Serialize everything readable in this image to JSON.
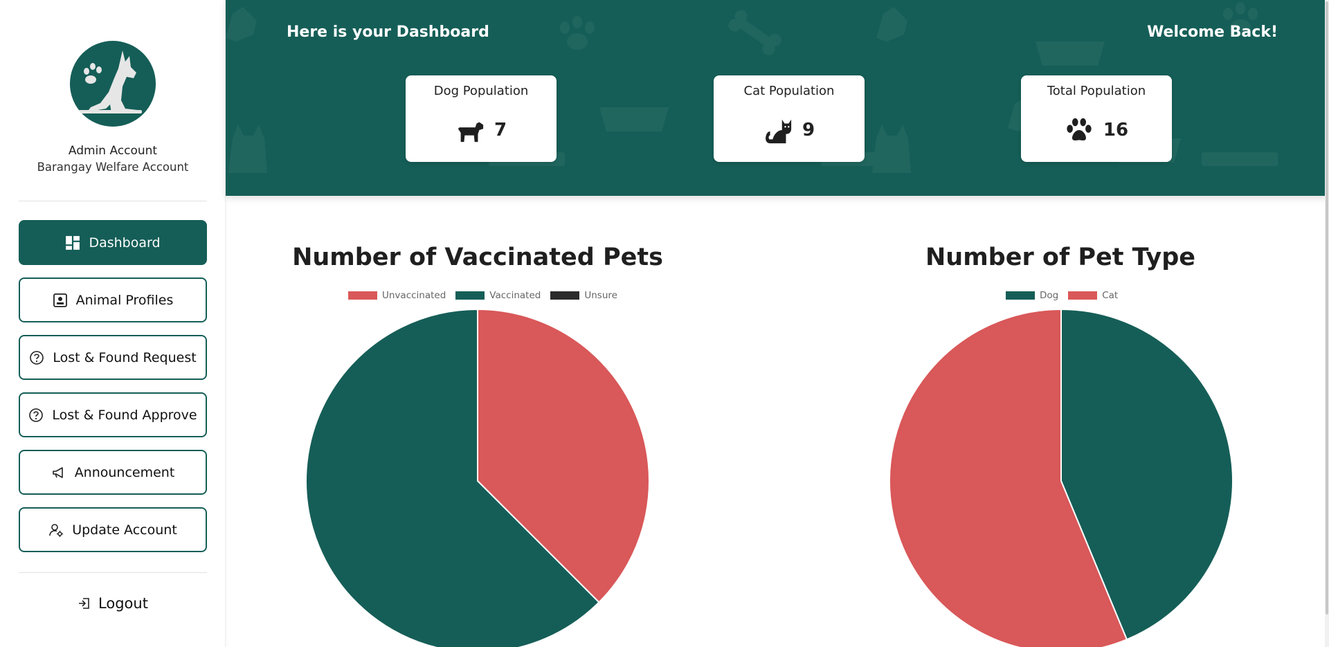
{
  "sidebar": {
    "account_name": "Admin Account",
    "account_sub": "Barangay Welfare Account",
    "nav": [
      {
        "label": "Dashboard",
        "icon": "dashboard-icon"
      },
      {
        "label": "Animal Profiles",
        "icon": "profile-card-icon"
      },
      {
        "label": "Lost & Found Request",
        "icon": "question-circle-icon"
      },
      {
        "label": "Lost & Found Approve",
        "icon": "question-circle-icon"
      },
      {
        "label": "Announcement",
        "icon": "megaphone-icon"
      },
      {
        "label": "Update Account",
        "icon": "user-gear-icon"
      }
    ],
    "logout": "Logout"
  },
  "header": {
    "title": "Here is your Dashboard",
    "welcome": "Welcome Back!"
  },
  "stats": [
    {
      "label": "Dog Population",
      "value": "7",
      "icon": "dog-icon"
    },
    {
      "label": "Cat Population",
      "value": "9",
      "icon": "cat-icon"
    },
    {
      "label": "Total Population",
      "value": "16",
      "icon": "paw-icon"
    }
  ],
  "colors": {
    "primary": "#155e57",
    "red": "#d95859",
    "dark": "#2b2b2b"
  },
  "chart_data": [
    {
      "type": "pie",
      "title": "Number of Vaccinated Pets",
      "categories": [
        "Unvaccinated",
        "Vaccinated",
        "Unsure"
      ],
      "values": [
        6,
        10,
        0
      ],
      "colors": [
        "#d95859",
        "#155e57",
        "#2b2b2b"
      ],
      "legend": "top"
    },
    {
      "type": "pie",
      "title": "Number of Pet Type",
      "categories": [
        "Dog",
        "Cat"
      ],
      "values": [
        7,
        9
      ],
      "colors": [
        "#155e57",
        "#d95859"
      ],
      "legend": "top"
    }
  ]
}
